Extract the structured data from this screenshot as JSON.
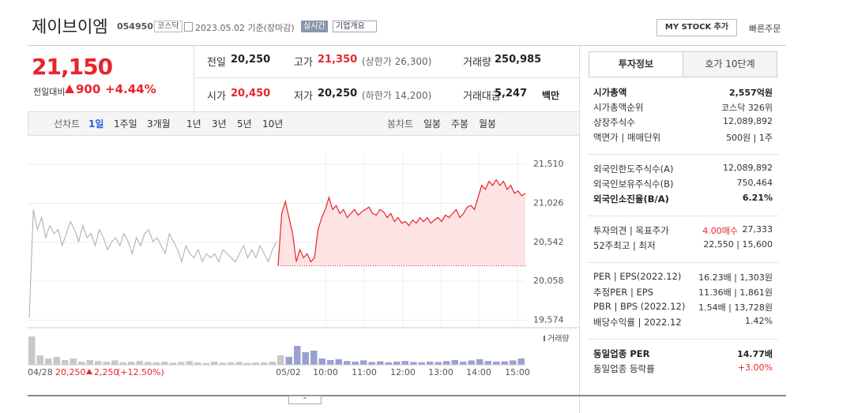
{
  "header": {
    "name": "제이브이엠",
    "code": "054950",
    "market": "코스닥",
    "date": "2023.05.02 기준(장마감)",
    "realtime": "실시간",
    "overview": "기업개요",
    "mystock": "MY STOCK 추가",
    "quick_order": "빠른주문"
  },
  "quote": {
    "price": "21,150",
    "change_label": "전일대비",
    "change": "900",
    "change_pct": "+4.44%",
    "cells": [
      {
        "label": "전일",
        "value": "20,250"
      },
      {
        "label": "고가",
        "value": "21,350",
        "note": "(상한가 26,300)",
        "red": true
      },
      {
        "label": "거래량",
        "value": "250,985"
      },
      {
        "label": "시가",
        "value": "20,450",
        "red": true
      },
      {
        "label": "저가",
        "value": "20,250",
        "note": "(하한가 14,200)"
      },
      {
        "label": "거래대금",
        "value": "5,247",
        "note": "백만"
      }
    ]
  },
  "chart_tabs": {
    "line_label": "선차트",
    "line": [
      "1일",
      "1주일",
      "3개월",
      "1년",
      "3년",
      "5년",
      "10년"
    ],
    "candle_label": "봉차트",
    "candle": [
      "일봉",
      "주봉",
      "월봉"
    ]
  },
  "chart": {
    "ylim": [
      19480,
      21640
    ],
    "yticks": [
      {
        "value": 21510,
        "label": "21,510"
      },
      {
        "value": 21026,
        "label": "21,026"
      },
      {
        "value": 20542,
        "label": "20,542"
      },
      {
        "value": 20058,
        "label": "20,058"
      },
      {
        "value": 19574,
        "label": "19,574"
      }
    ],
    "baseline": 20250,
    "prev_color": "#aaaaaa",
    "today_color": "#e8242c",
    "fill_color": "#fde3e3",
    "prev_day": [
      19600,
      20950,
      20700,
      20850,
      20600,
      20750,
      20650,
      20700,
      20500,
      20650,
      20800,
      20700,
      20550,
      20750,
      20600,
      20650,
      20500,
      20700,
      20600,
      20450,
      20550,
      20600,
      20500,
      20650,
      20550,
      20400,
      20600,
      20500,
      20650,
      20700,
      20550,
      20600,
      20500,
      20400,
      20650,
      20550,
      20450,
      20300,
      20500,
      20400,
      20350,
      20450,
      20300,
      20400,
      20350,
      20400,
      20300,
      20450,
      20400,
      20350,
      20300,
      20400,
      20500,
      20350,
      20450,
      20350,
      20500,
      20400,
      20300,
      20450,
      20550
    ],
    "today": [
      20250,
      20900,
      21050,
      20850,
      20650,
      20300,
      20450,
      20350,
      20400,
      20300,
      20350,
      20700,
      20850,
      20950,
      21100,
      20950,
      21000,
      20900,
      20950,
      20850,
      20900,
      20950,
      20880,
      20920,
      20950,
      20980,
      20900,
      20880,
      20950,
      20920,
      20850,
      20900,
      20800,
      20850,
      20780,
      20800,
      20750,
      20820,
      20780,
      20850,
      20800,
      20850,
      20780,
      20820,
      20850,
      20800,
      20880,
      20850,
      20900,
      20950,
      20850,
      20900,
      20980,
      21000,
      20950,
      21100,
      21250,
      21200,
      21300,
      21250,
      21320,
      21250,
      21300,
      21200,
      21250,
      21150,
      21180,
      21120,
      21150
    ],
    "volume_label": "거래량",
    "volume_ylim": [
      0,
      100
    ],
    "volume": [
      90,
      30,
      20,
      25,
      15,
      20,
      10,
      15,
      12,
      10,
      14,
      8,
      10,
      12,
      9,
      8,
      10,
      7,
      9,
      12,
      8,
      6,
      10,
      7,
      8,
      9,
      6,
      7,
      8,
      10,
      30,
      25,
      60,
      40,
      45,
      20,
      15,
      18,
      12,
      10,
      14,
      9,
      11,
      8,
      10,
      12,
      9,
      8,
      10,
      9,
      12,
      15,
      10,
      14,
      18,
      12,
      10,
      11,
      14,
      20
    ],
    "xlabels": [
      "05/02",
      "10:00",
      "11:00",
      "12:00",
      "13:00",
      "14:00",
      "15:00"
    ],
    "footer": {
      "date": "04/28",
      "close": "20,250",
      "change": "2,250",
      "pct": "(+12.50%)"
    }
  },
  "invest": {
    "tabs": [
      "투자정보",
      "호가 10단계"
    ],
    "groups": [
      [
        {
          "label": "시가총액",
          "value": "2,557억원",
          "bold": true
        },
        {
          "label": "시가총액순위",
          "value": "코스닥 326위"
        },
        {
          "label": "상장주식수",
          "value": "12,089,892"
        },
        {
          "label": "액면가 | 매매단위",
          "value": "500원 | 1주"
        }
      ],
      [
        {
          "label": "외국인한도주식수(A)",
          "value": "12,089,892"
        },
        {
          "label": "외국인보유주식수(B)",
          "value": "750,464"
        },
        {
          "label": "외국인소진율(B/A)",
          "value": "6.21%",
          "bold": true
        }
      ],
      [
        {
          "label": "투자의견 | 목표주가",
          "value": "4.00매수",
          "value2": "27,333",
          "red": true
        },
        {
          "label": "52주최고 | 최저",
          "value": "22,550 | 15,600"
        }
      ],
      [
        {
          "label": "PER | EPS(2022.12)",
          "value": "16.23배 | 1,303원"
        },
        {
          "label": "추정PER | EPS",
          "value": "11.36배 | 1,861원"
        },
        {
          "label": "PBR | BPS (2022.12)",
          "value": "1.54배 | 13,728원"
        },
        {
          "label": "배당수익률 | 2022.12",
          "value": "1.42%"
        }
      ],
      [
        {
          "label": "동일업종 PER",
          "value": "14.77배",
          "bold": true
        },
        {
          "label": "동일업종 등락률",
          "value": "+3.00%",
          "red": true
        }
      ]
    ]
  }
}
